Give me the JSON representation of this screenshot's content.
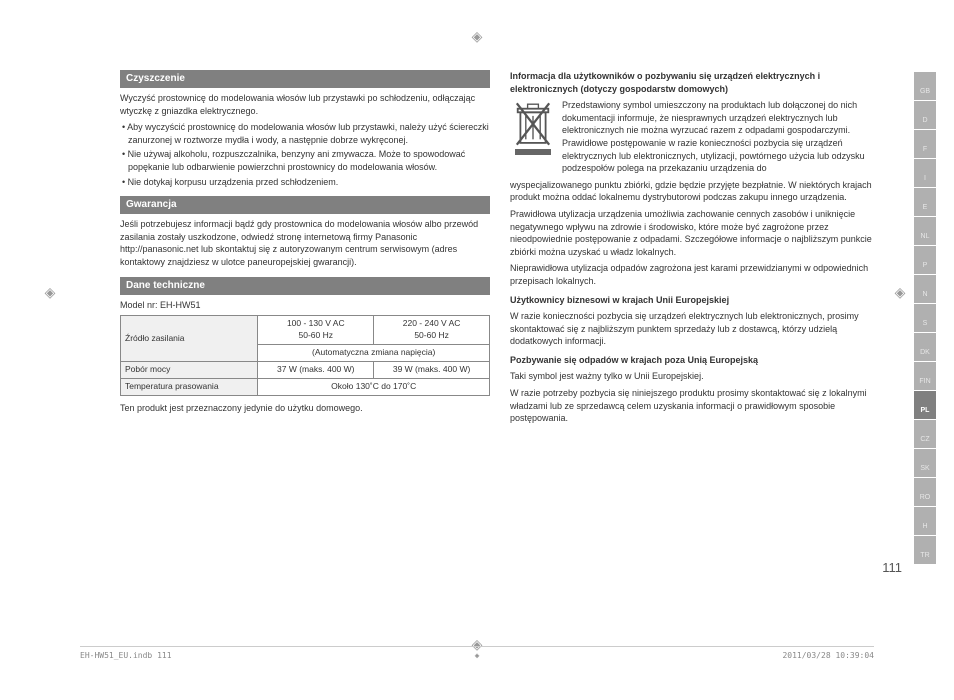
{
  "left": {
    "sec1_title": "Czyszczenie",
    "sec1_p1": "Wyczyść prostownicę do modelowania włosów lub przystawki po schłodzeniu, odłączając wtyczkę z gniazdka elektrycznego.",
    "sec1_b1": "• Aby wyczyścić prostownicę do modelowania włosów lub przystawki, należy użyć ściereczki zanurzonej w roztworze mydła i wody, a następnie dobrze wykręconej.",
    "sec1_b2": "• Nie używaj alkoholu, rozpuszczalnika, benzyny ani zmywacza. Może to spowodować popękanie lub odbarwienie powierzchni prostownicy do modelowania włosów.",
    "sec1_b3": "• Nie dotykaj korpusu urządzenia przed schłodzeniem.",
    "sec2_title": "Gwarancja",
    "sec2_p1": "Jeśli potrzebujesz informacji bądź gdy prostownica do modelowania włosów albo przewód zasilania zostały uszkodzone, odwiedź stronę internetową firmy Panasonic http://panasonic.net lub skontaktuj się z autoryzowanym centrum serwisowym (adres kontaktowy znajdziesz w ulotce paneuropejskiej gwarancji).",
    "sec3_title": "Dane techniczne",
    "sec3_model": "Model nr: EH-HW51",
    "table": {
      "r1_label": "Źródło zasilania",
      "r1_c1": "100 - 130 V AC\n50-60 Hz",
      "r1_c2": "220 - 240 V AC\n50-60 Hz",
      "r1_sub": "(Automatyczna zmiana napięcia)",
      "r2_label": "Pobór mocy",
      "r2_c1": "37 W (maks. 400 W)",
      "r2_c2": "39 W (maks. 400 W)",
      "r3_label": "Temperatura prasowania",
      "r3_val": "Około 130˚C do 170˚C"
    },
    "sec3_note": "Ten produkt jest przeznaczony jedynie do użytku domowego."
  },
  "right": {
    "h1": "Informacja dla użytkowników o pozbywaniu się urządzeń elektrycznych i elektronicznych (dotyczy gospodarstw domowych)",
    "p1": "Przedstawiony symbol umieszczony na produktach lub dołączonej do nich dokumentacji informuje, że niesprawnych urządzeń elektrycznych lub elektronicznych nie można wyrzucać razem z odpadami gospodarczymi. Prawidłowe postępowanie w razie konieczności pozbycia się urządzeń elektrycznych lub elektronicznych, utylizacji, powtórnego użycia lub odzysku podzespołów polega na przekazaniu urządzenia do",
    "p1b": "wyspecjalizowanego punktu zbiórki, gdzie będzie przyjęte bezpłatnie. W niektórych krajach produkt można oddać lokalnemu dystrybutorowi podczas zakupu innego urządzenia.",
    "p2": "Prawidłowa utylizacja urządzenia umożliwia zachowanie cennych zasobów i uniknięcie negatywnego wpływu na zdrowie i środowisko, które może być zagrożone przez nieodpowiednie postępowanie z odpadami. Szczegółowe informacje o najbliższym punkcie zbiórki można uzyskać u władz lokalnych.",
    "p3": "Nieprawidłowa utylizacja odpadów zagrożona jest karami przewidzianymi w odpowiednich przepisach lokalnych.",
    "h2": "Użytkownicy biznesowi w krajach Unii Europejskiej",
    "p4": "W razie konieczności pozbycia się urządzeń elektrycznych lub elektronicznych, prosimy skontaktować się z najbliższym punktem sprzedaży lub z dostawcą, którzy udzielą dodatkowych informacji.",
    "h3": "Pozbywanie się odpadów w krajach poza Unią Europejską",
    "p5": "Taki symbol jest ważny tylko w Unii Europejskiej.",
    "p6": "W razie potrzeby pozbycia się niniejszego produktu prosimy skontaktować się z lokalnymi władzami lub ze sprzedawcą celem uzyskania informacji o prawidłowym sposobie postępowania."
  },
  "tabs": [
    "GB",
    "D",
    "F",
    "I",
    "E",
    "NL",
    "P",
    "N",
    "S",
    "DK",
    "FIN",
    "PL",
    "CZ",
    "SK",
    "RO",
    "H",
    "TR"
  ],
  "active_tab": "PL",
  "page_num": "111",
  "footer_left": "EH-HW51_EU.indb   111",
  "footer_right": "2011/03/28   10:39:04"
}
